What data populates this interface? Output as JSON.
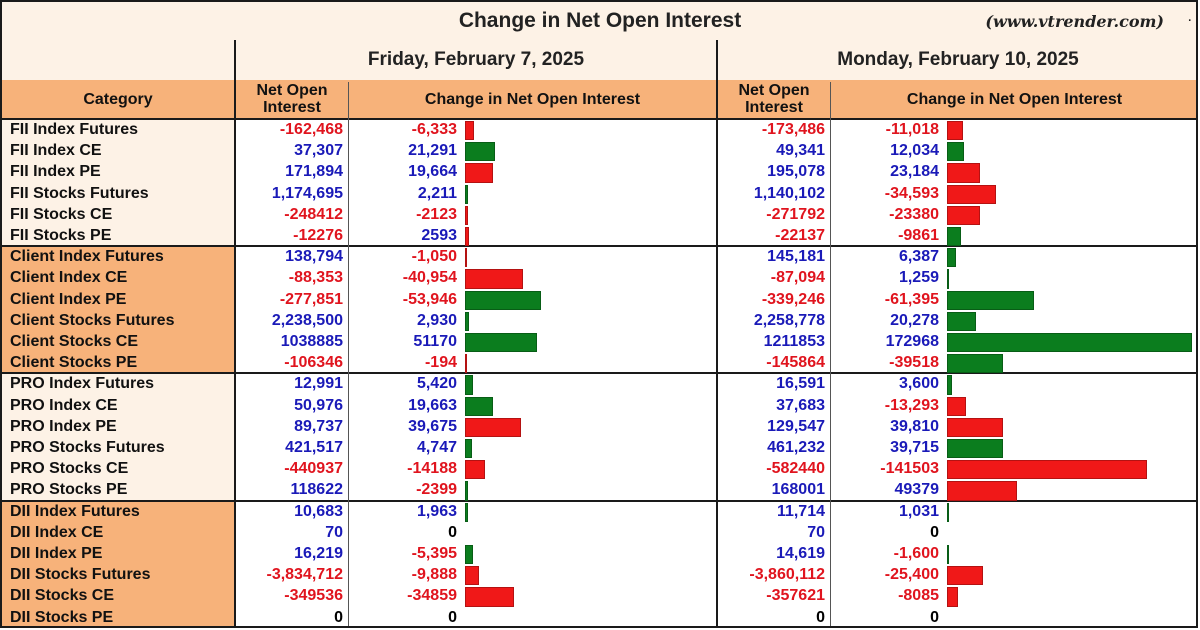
{
  "header": {
    "title": "Change in Net Open Interest",
    "site": "(www.vtrender.com)",
    "dot": "."
  },
  "columns": {
    "category": "Category",
    "noi": "Net Open\nInterest",
    "change": "Change in Net Open Interest"
  },
  "colors": {
    "positive_text": "#1a1ab8",
    "negative_text": "#e0141e",
    "zero_text": "#000000",
    "bar_positive": "#0b7d1e",
    "bar_negative": "#f01818",
    "category_shade": "#f7b27a",
    "category_light": "#fdf2e6"
  },
  "chart_data": {
    "type": "table",
    "dates": [
      "Friday, February 7, 2025",
      "Monday, February 10, 2025"
    ],
    "categories": [
      "FII Index Futures",
      "FII Index CE",
      "FII Index PE",
      "FII Stocks Futures",
      "FII Stocks CE",
      "FII Stocks PE",
      "Client Index Futures",
      "Client Index CE",
      "Client Index PE",
      "Client Stocks Futures",
      "Client Stocks CE",
      "Client Stocks PE",
      "PRO Index Futures",
      "PRO Index CE",
      "PRO Index PE",
      "PRO Stocks Futures",
      "PRO Stocks CE",
      "PRO Stocks PE",
      "DII Index Futures",
      "DII Index CE",
      "DII Index PE",
      "DII Stocks Futures",
      "DII Stocks CE",
      "DII Stocks PE"
    ],
    "groups": [
      {
        "name": "FII",
        "shaded": false
      },
      {
        "name": "Client",
        "shaded": true
      },
      {
        "name": "PRO",
        "shaded": false
      },
      {
        "name": "DII",
        "shaded": true
      }
    ],
    "series": [
      {
        "date": "Friday, February 7, 2025",
        "noi": [
          "-162,468",
          "37,307",
          "171,894",
          "1,174,695",
          "-248412",
          "-12276",
          "138,794",
          "-88,353",
          "-277,851",
          "2,238,500",
          "1038885",
          "-106346",
          "12,991",
          "50,976",
          "89,737",
          "421,517",
          "-440937",
          "118622",
          "10,683",
          "70",
          "16,219",
          "-3,834,712",
          "-349536",
          "0"
        ],
        "change": [
          "-6,333",
          "21,291",
          "19,664",
          "2,211",
          "-2123",
          "2593",
          "-1,050",
          "-40,954",
          "-53,946",
          "2,930",
          "51170",
          "-194",
          "5,420",
          "19,663",
          "39,675",
          "4,747",
          "-14188",
          "-2399",
          "1,963",
          "0",
          "-5,395",
          "-9,888",
          "-34859",
          "0"
        ],
        "change_values": [
          -6333,
          21291,
          19664,
          2211,
          -2123,
          2593,
          -1050,
          -40954,
          -53946,
          2930,
          51170,
          -194,
          5420,
          19663,
          39675,
          4747,
          -14188,
          -2399,
          1963,
          0,
          -5395,
          -9888,
          -34859,
          0
        ],
        "bar_color": [
          "red",
          "green",
          "red",
          "green",
          "red",
          "red",
          "red",
          "red",
          "green",
          "green",
          "green",
          "red",
          "green",
          "green",
          "red",
          "green",
          "red",
          "green",
          "green",
          "none",
          "green",
          "red",
          "red",
          "none"
        ]
      },
      {
        "date": "Monday, February 10, 2025",
        "noi": [
          "-173,486",
          "49,341",
          "195,078",
          "1,140,102",
          "-271792",
          "-22137",
          "145,181",
          "-87,094",
          "-339,246",
          "2,258,778",
          "1211853",
          "-145864",
          "16,591",
          "37,683",
          "129,547",
          "461,232",
          "-582440",
          "168001",
          "11,714",
          "70",
          "14,619",
          "-3,860,112",
          "-357621",
          "0"
        ],
        "change": [
          "-11,018",
          "12,034",
          "23,184",
          "-34,593",
          "-23380",
          "-9861",
          "6,387",
          "1,259",
          "-61,395",
          "20,278",
          "172968",
          "-39518",
          "3,600",
          "-13,293",
          "39,810",
          "39,715",
          "-141503",
          "49379",
          "1,031",
          "0",
          "-1,600",
          "-25,400",
          "-8085",
          "0"
        ],
        "change_values": [
          -11018,
          12034,
          23184,
          -34593,
          -23380,
          -9861,
          6387,
          1259,
          -61395,
          20278,
          172968,
          -39518,
          3600,
          -13293,
          39810,
          39715,
          -141503,
          49379,
          1031,
          0,
          -1600,
          -25400,
          -8085,
          0
        ],
        "bar_color": [
          "red",
          "green",
          "red",
          "red",
          "red",
          "green",
          "green",
          "green",
          "green",
          "green",
          "green",
          "green",
          "green",
          "red",
          "red",
          "green",
          "red",
          "red",
          "green",
          "none",
          "green",
          "red",
          "red",
          "none"
        ]
      }
    ]
  }
}
